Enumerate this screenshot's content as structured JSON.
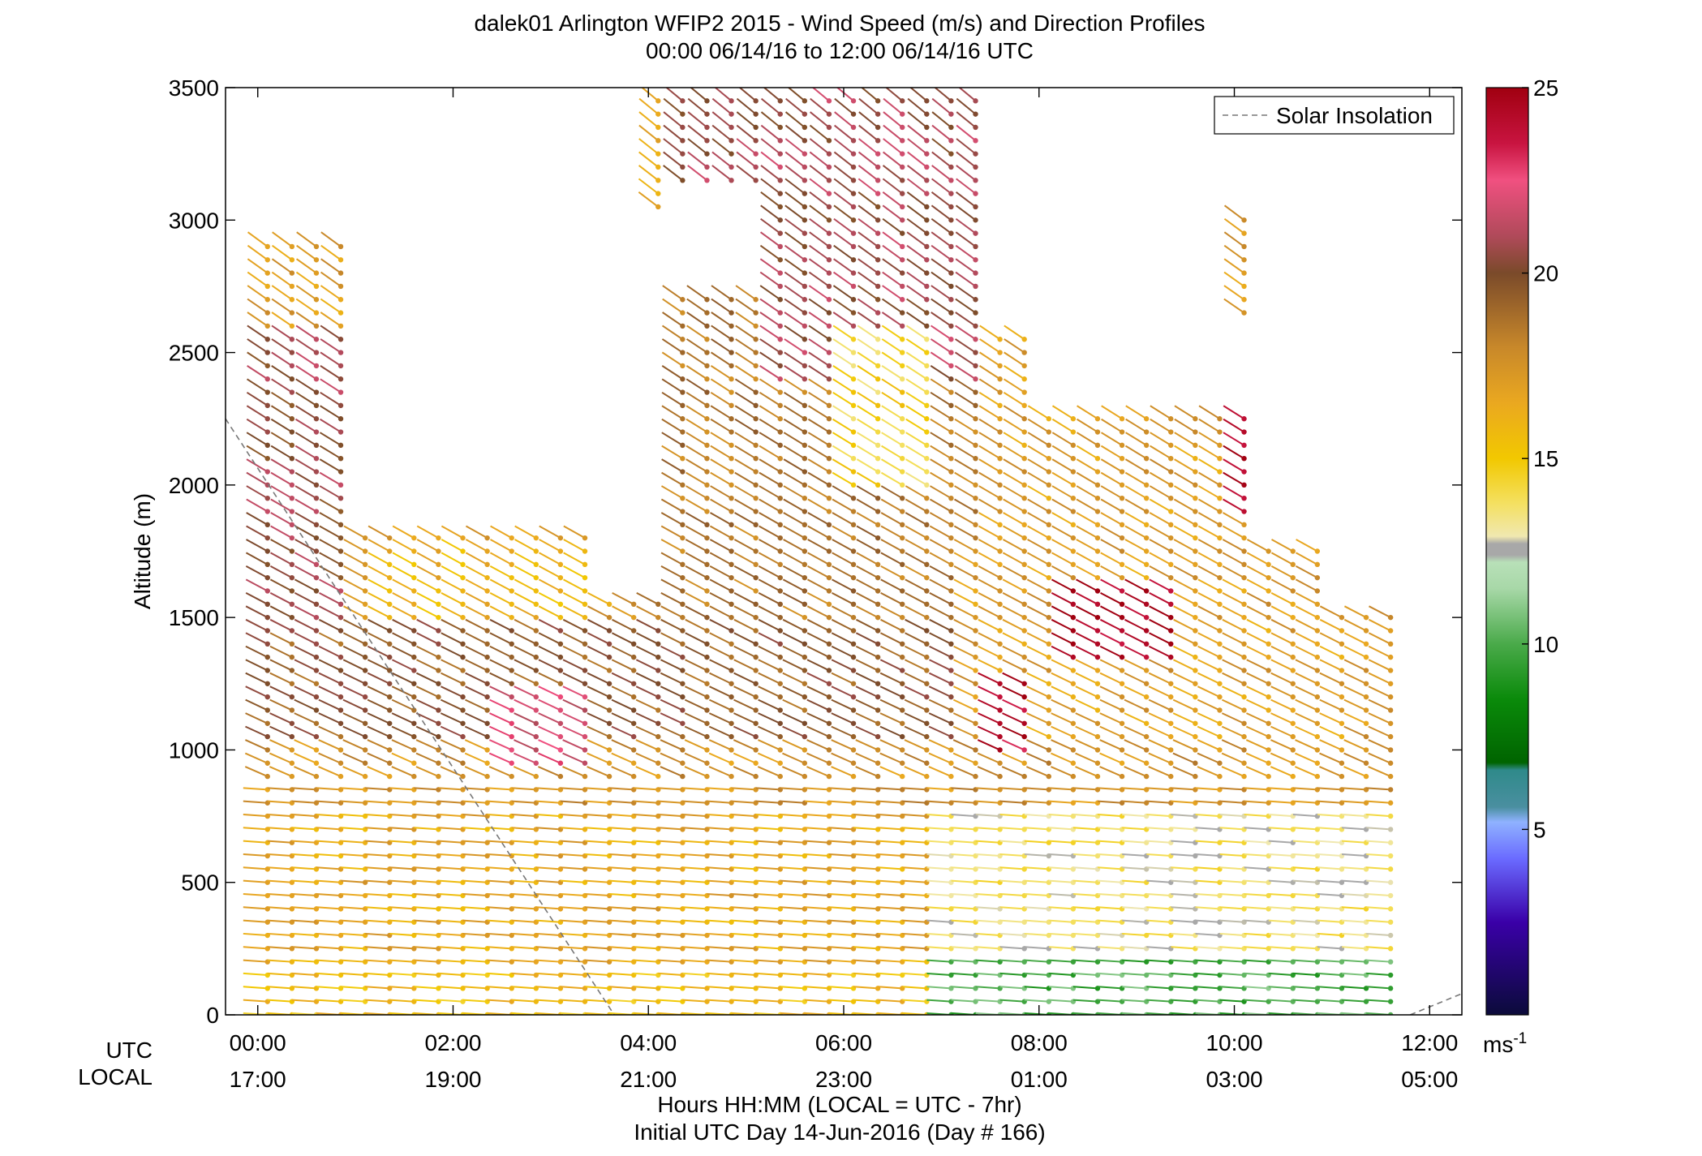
{
  "chart_data": {
    "type": "wind-barb-profile",
    "title": "dalek01 Arlington WFIP2 2015 - Wind Speed (m/s) and Direction Profiles",
    "subtitle": "00:00 06/14/16 to 12:00 06/14/16  UTC",
    "ylabel": "Altitude (m)",
    "ylim": [
      0,
      3500
    ],
    "yticks": [
      "0",
      "500",
      "1000",
      "1500",
      "2000",
      "2500",
      "3000",
      "3500"
    ],
    "ytick_values": [
      0,
      500,
      1000,
      1500,
      2000,
      2500,
      3000,
      3500
    ],
    "x_row_labels": {
      "utc": "UTC",
      "local": "LOCAL"
    },
    "x_range_hours": [
      -0.33,
      12.33
    ],
    "xticks_utc": [
      "00:00",
      "02:00",
      "04:00",
      "06:00",
      "08:00",
      "10:00",
      "12:00"
    ],
    "xticks_local": [
      "17:00",
      "19:00",
      "21:00",
      "23:00",
      "01:00",
      "03:00",
      "05:00"
    ],
    "xtick_hours": [
      0,
      2,
      4,
      6,
      8,
      10,
      12
    ],
    "xlabel": "Hours HH:MM  (LOCAL = UTC - 7hr)",
    "xlabel2": "Initial UTC Day 14-Jun-2016 (Day # 166)",
    "legend": {
      "entries": [
        "Solar Insolation"
      ],
      "placement": "top-right",
      "line_style": "dashed",
      "color": "#777777"
    },
    "colorbar": {
      "range": [
        0,
        25
      ],
      "ticks": [
        "5",
        "10",
        "15",
        "20",
        "25"
      ],
      "tick_values": [
        5,
        10,
        15,
        20,
        25
      ],
      "unit_label": "ms",
      "unit_exponent": "-1",
      "stops": [
        {
          "v": 0,
          "color": "#0b0b3a"
        },
        {
          "v": 2.5,
          "color": "#3a00a8"
        },
        {
          "v": 4.2,
          "color": "#6a6aff"
        },
        {
          "v": 5.2,
          "color": "#8fb2ff"
        },
        {
          "v": 5.6,
          "color": "#4a8fa0"
        },
        {
          "v": 6.6,
          "color": "#2f8a8a"
        },
        {
          "v": 6.8,
          "color": "#006400"
        },
        {
          "v": 8.5,
          "color": "#0a8a0a"
        },
        {
          "v": 10.0,
          "color": "#4aaa4a"
        },
        {
          "v": 11.5,
          "color": "#a8d8a8"
        },
        {
          "v": 12.2,
          "color": "#b8e0b8"
        },
        {
          "v": 12.4,
          "color": "#a8a8a8"
        },
        {
          "v": 12.7,
          "color": "#a8a8a8"
        },
        {
          "v": 12.9,
          "color": "#f0e8b0"
        },
        {
          "v": 13.8,
          "color": "#f4e060"
        },
        {
          "v": 15.0,
          "color": "#f2c800"
        },
        {
          "v": 16.5,
          "color": "#eaa820"
        },
        {
          "v": 18.0,
          "color": "#c8882a"
        },
        {
          "v": 20.0,
          "color": "#7a4a2a"
        },
        {
          "v": 21.0,
          "color": "#b04a5a"
        },
        {
          "v": 22.5,
          "color": "#f05080"
        },
        {
          "v": 23.5,
          "color": "#c81440"
        },
        {
          "v": 25.0,
          "color": "#a00010"
        }
      ]
    },
    "solar_insolation_line": {
      "segments": [
        {
          "hours": [
            -0.33,
            3.65
          ],
          "altitude": [
            2250,
            0
          ]
        },
        {
          "hours": [
            11.8,
            12.33
          ],
          "altitude": [
            0,
            80
          ]
        }
      ]
    },
    "profile_range_hours": [
      0.1,
      11.75
    ],
    "profile_interval_hours": 0.25,
    "wind_regions": [
      {
        "t0": 0.0,
        "t1": 12.0,
        "z0": 0,
        "z1": 160,
        "speed": 15.5
      },
      {
        "t0": 0.0,
        "t1": 12.0,
        "z0": 160,
        "z1": 800,
        "speed": 16.5
      },
      {
        "t0": 0.0,
        "t1": 12.0,
        "z0": 800,
        "z1": 1050,
        "speed": 17.5
      },
      {
        "t0": 0.0,
        "t1": 7.2,
        "z0": 1050,
        "z1": 1500,
        "speed": 19.5
      },
      {
        "t0": 0.0,
        "t1": 1.0,
        "z0": 1500,
        "z1": 2600,
        "speed": 20.5
      },
      {
        "t0": 1.3,
        "t1": 3.5,
        "z0": 1500,
        "z1": 1800,
        "speed": 16.0
      },
      {
        "t0": 2.6,
        "t1": 3.6,
        "z0": 950,
        "z1": 1250,
        "speed": 22.0
      },
      {
        "t0": 4.0,
        "t1": 7.6,
        "z0": 1500,
        "z1": 2800,
        "speed": 18.5
      },
      {
        "t0": 5.3,
        "t1": 7.6,
        "z0": 2400,
        "z1": 3500,
        "speed": 20.8
      },
      {
        "t0": 4.3,
        "t1": 5.3,
        "z0": 3100,
        "z1": 3500,
        "speed": 20.8
      },
      {
        "t0": 6.0,
        "t1": 7.0,
        "z0": 2000,
        "z1": 2600,
        "speed": 14.5
      },
      {
        "t0": 7.0,
        "t1": 12.0,
        "z0": 0,
        "z1": 250,
        "speed": 10.0
      },
      {
        "t0": 7.0,
        "t1": 12.0,
        "z0": 250,
        "z1": 800,
        "speed": 13.5
      },
      {
        "t0": 7.2,
        "t1": 11.0,
        "z0": 1050,
        "z1": 1750,
        "speed": 17.0
      },
      {
        "t0": 8.2,
        "t1": 9.6,
        "z0": 1350,
        "z1": 1650,
        "speed": 24.5
      },
      {
        "t0": 7.5,
        "t1": 8.0,
        "z0": 1000,
        "z1": 1300,
        "speed": 24.0
      },
      {
        "t0": 10.0,
        "t1": 10.2,
        "z0": 1900,
        "z1": 2300,
        "speed": 24.5
      }
    ]
  }
}
